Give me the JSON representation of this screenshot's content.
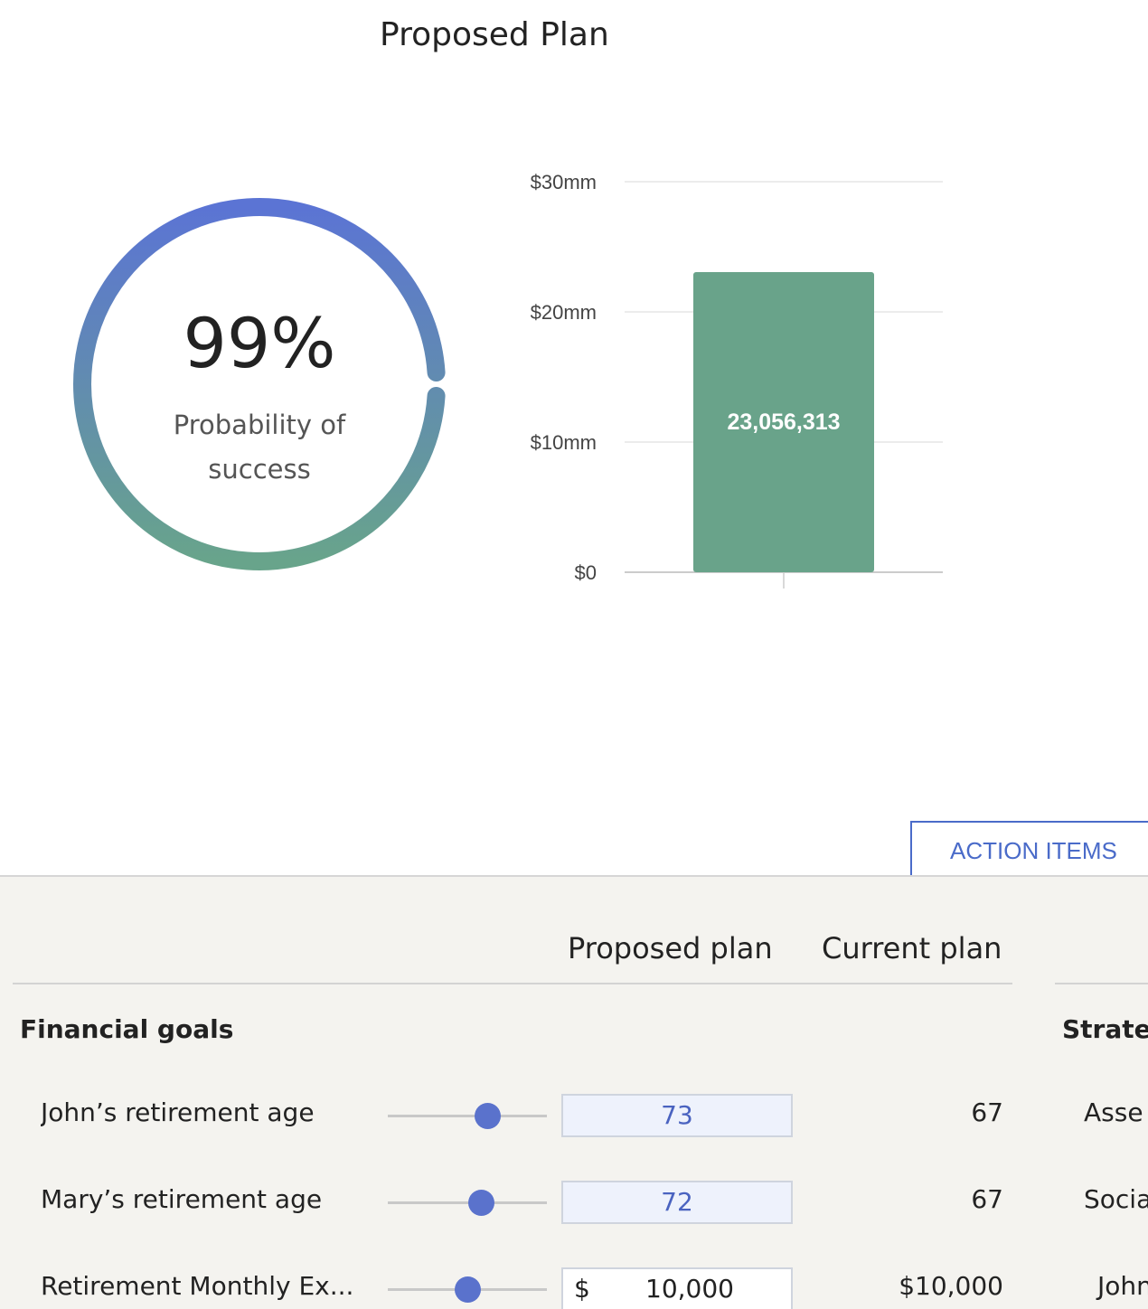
{
  "page": {
    "title": "Proposed Plan"
  },
  "probability": {
    "percent_text": "99%",
    "percent": 99,
    "label": "Probability of success"
  },
  "colors": {
    "accent": "#4a6bc9",
    "donut_top": "#5b74d4",
    "donut_bottom": "#68a48b",
    "bar": "#69a38a",
    "slider_thumb": "#5a72cc",
    "panel_bg": "#f4f3ef"
  },
  "chart_data": {
    "type": "bar",
    "categories": [
      ""
    ],
    "values": [
      23056313
    ],
    "data_labels": [
      "23,056,313"
    ],
    "ylim": [
      0,
      30000000
    ],
    "yticks": [
      0,
      10000000,
      20000000,
      30000000
    ],
    "ytick_labels": [
      "$0",
      "$10mm",
      "$20mm",
      "$30mm"
    ],
    "grid": true
  },
  "action_items": {
    "label": "ACTION ITEMS"
  },
  "table": {
    "headers": {
      "proposed": "Proposed plan",
      "current": "Current plan"
    },
    "section_title": "Financial goals",
    "side_section_title": "Strateg",
    "rows": [
      {
        "label": "John’s retirement age",
        "slider_fraction": 0.63,
        "proposed": "73",
        "current": "67",
        "side": "Asse"
      },
      {
        "label": "Mary’s retirement age",
        "slider_fraction": 0.59,
        "proposed": "72",
        "current": "67",
        "side": "Socia"
      },
      {
        "label": "Retirement Monthly Ex...",
        "slider_fraction": 0.5,
        "currency": "$",
        "proposed": "10,000",
        "current": "$10,000",
        "side": "John"
      }
    ]
  }
}
